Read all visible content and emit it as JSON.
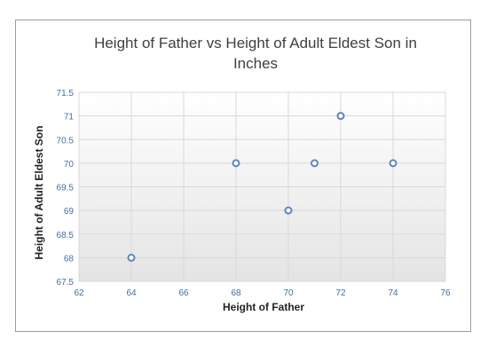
{
  "chart_data": {
    "type": "scatter",
    "title": "Height of Father vs Height of Adult Eldest Son in Inches",
    "title_lines": [
      "Height of Father vs Height of Adult Eldest Son in",
      "Inches"
    ],
    "xlabel": "Height of Father",
    "ylabel": "Height of Adult Eldest Son",
    "xlim": [
      62,
      76
    ],
    "ylim": [
      67.5,
      71.5
    ],
    "x_ticks": [
      62,
      64,
      66,
      68,
      70,
      72,
      74,
      76
    ],
    "y_ticks": [
      67.5,
      68,
      68.5,
      69,
      69.5,
      70,
      70.5,
      71,
      71.5
    ],
    "grid": true,
    "legend": "none",
    "points": [
      {
        "x": 64,
        "y": 68
      },
      {
        "x": 68,
        "y": 70
      },
      {
        "x": 70,
        "y": 69
      },
      {
        "x": 71,
        "y": 70
      },
      {
        "x": 72,
        "y": 71
      },
      {
        "x": 74,
        "y": 70
      }
    ],
    "colors": {
      "marker_fill": "#ffffff",
      "marker_stroke": "#5b85c0",
      "tick_labels": "#3f6fb0",
      "grid": "#d9d9d9",
      "plot_gradient_top": "#ffffff",
      "plot_gradient_bottom": "#e4e4e4"
    }
  }
}
